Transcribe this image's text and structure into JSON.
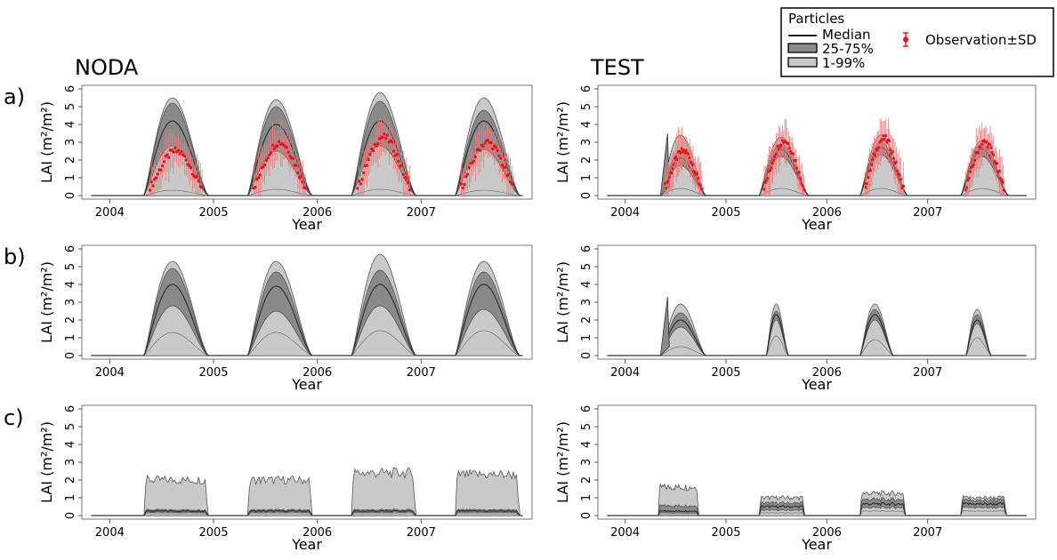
{
  "figure": {
    "columns": [
      "NODA",
      "TEST"
    ],
    "rows": [
      "a)",
      "b)",
      "c)"
    ]
  },
  "legend": {
    "title": "Particles",
    "items": [
      "Median",
      "25-75%",
      "1-99%"
    ],
    "observation_label": "Observation±SD"
  },
  "colors": {
    "band_outer": "#c9c9c9",
    "band_inner": "#8a8a8a",
    "median": "#333333",
    "observation": "#e8141a",
    "observation_err": "#f07878",
    "axis": "#777777"
  },
  "chart_data": [
    {
      "panel": "a-NODA",
      "type": "area",
      "xlabel": "Year",
      "ylabel": "LAI (m²/m²)",
      "xticks": [
        "2004",
        "2005",
        "2006",
        "2007"
      ],
      "xlim": [
        2003.8,
        2008.0
      ],
      "ylim": [
        0,
        6
      ],
      "yticks": [
        0,
        1,
        2,
        3,
        4,
        5,
        6
      ],
      "seasons": [
        {
          "start": 2004.33,
          "end": 2004.95,
          "q01": 0.3,
          "q25": 2.8,
          "median": 4.2,
          "q75": 5.2,
          "q99": 5.5
        },
        {
          "start": 2005.33,
          "end": 2005.95,
          "q01": 0.35,
          "q25": 2.5,
          "median": 4.0,
          "q75": 5.0,
          "q99": 5.4
        },
        {
          "start": 2006.33,
          "end": 2006.95,
          "q01": 0.35,
          "q25": 2.8,
          "median": 4.2,
          "q75": 5.3,
          "q99": 5.8
        },
        {
          "start": 2007.33,
          "end": 2007.95,
          "q01": 0.3,
          "q25": 2.6,
          "median": 4.2,
          "q75": 4.8,
          "q99": 5.5
        }
      ],
      "observations": [
        {
          "year": 2004,
          "peak": 2.0
        },
        {
          "year": 2005,
          "peak": 2.5
        },
        {
          "year": 2006,
          "peak": 2.8
        },
        {
          "year": 2007,
          "peak": 2.5
        }
      ],
      "ribbon_scale": 0.88
    },
    {
      "panel": "a-TEST",
      "type": "area",
      "xlabel": "Year",
      "ylabel": "LAI (m²/m²)",
      "xticks": [
        "2004",
        "2005",
        "2006",
        "2007"
      ],
      "xlim": [
        2003.8,
        2008.0
      ],
      "ylim": [
        0,
        6
      ],
      "yticks": [
        0,
        1,
        2,
        3,
        4,
        5,
        6
      ],
      "seasons": [
        {
          "start": 2004.35,
          "end": 2004.8,
          "q01": 0.4,
          "q25": 1.7,
          "median": 2.1,
          "q75": 2.5,
          "q99": 3.4,
          "spike": 3.5
        },
        {
          "start": 2005.33,
          "end": 2005.82,
          "q01": 0.4,
          "q25": 2.2,
          "median": 2.6,
          "q75": 2.9,
          "q99": 3.3
        },
        {
          "start": 2006.33,
          "end": 2006.8,
          "q01": 0.4,
          "q25": 2.3,
          "median": 2.7,
          "q75": 3.0,
          "q99": 3.4
        },
        {
          "start": 2007.33,
          "end": 2007.8,
          "q01": 0.4,
          "q25": 2.2,
          "median": 2.6,
          "q75": 2.9,
          "q99": 3.1
        }
      ],
      "observations": [
        {
          "year": 2004,
          "peak": 2.0
        },
        {
          "year": 2005,
          "peak": 2.6
        },
        {
          "year": 2006,
          "peak": 2.7
        },
        {
          "year": 2007,
          "peak": 2.5
        }
      ],
      "ribbon_scale": 0.88
    },
    {
      "panel": "b-NODA",
      "type": "area",
      "xlabel": "Year",
      "ylabel": "LAI (m²/m²)",
      "xticks": [
        "2004",
        "2005",
        "2006",
        "2007"
      ],
      "xlim": [
        2003.8,
        2008.0
      ],
      "ylim": [
        0,
        6
      ],
      "yticks": [
        0,
        1,
        2,
        3,
        4,
        5,
        6
      ],
      "seasons": [
        {
          "start": 2004.33,
          "end": 2004.95,
          "q01": 1.3,
          "q25": 2.8,
          "median": 4.0,
          "q75": 4.9,
          "q99": 5.3
        },
        {
          "start": 2005.33,
          "end": 2005.95,
          "q01": 1.3,
          "q25": 2.5,
          "median": 3.9,
          "q75": 4.7,
          "q99": 5.3
        },
        {
          "start": 2006.33,
          "end": 2006.95,
          "q01": 1.4,
          "q25": 2.8,
          "median": 4.0,
          "q75": 4.8,
          "q99": 5.7
        },
        {
          "start": 2007.33,
          "end": 2007.95,
          "q01": 1.4,
          "q25": 2.6,
          "median": 4.0,
          "q75": 4.7,
          "q99": 5.3
        }
      ],
      "observations": [],
      "ribbon_scale": 1.0
    },
    {
      "panel": "b-TEST",
      "type": "area",
      "xlabel": "Year",
      "ylabel": "LAI (m²/m²)",
      "xticks": [
        "2004",
        "2005",
        "2006",
        "2007"
      ],
      "xlim": [
        2003.8,
        2008.0
      ],
      "ylim": [
        0,
        6
      ],
      "yticks": [
        0,
        1,
        2,
        3,
        4,
        5,
        6
      ],
      "seasons": [
        {
          "start": 2004.35,
          "end": 2004.8,
          "q01": 0.5,
          "q25": 1.6,
          "median": 2.0,
          "q75": 2.4,
          "q99": 2.9,
          "spike": 3.3
        },
        {
          "start": 2005.4,
          "end": 2005.62,
          "q01": 1.1,
          "q25": 2.0,
          "median": 2.3,
          "q75": 2.5,
          "q99": 2.9
        },
        {
          "start": 2006.33,
          "end": 2006.66,
          "q01": 0.9,
          "q25": 2.0,
          "median": 2.3,
          "q75": 2.6,
          "q99": 2.9
        },
        {
          "start": 2007.38,
          "end": 2007.63,
          "q01": 1.0,
          "q25": 1.8,
          "median": 2.0,
          "q75": 2.3,
          "q99": 2.6
        }
      ],
      "observations": [],
      "ribbon_scale": 1.0
    },
    {
      "panel": "c-NODA",
      "type": "area",
      "xlabel": "Year",
      "ylabel": "LAI (m²/m²)",
      "xticks": [
        "2004",
        "2005",
        "2006",
        "2007"
      ],
      "xlim": [
        2003.8,
        2008.0
      ],
      "ylim": [
        0,
        6
      ],
      "yticks": [
        0,
        1,
        2,
        3,
        4,
        5,
        6
      ],
      "seasons": [
        {
          "start": 2004.33,
          "end": 2004.95,
          "q01": 0.1,
          "q25": 0.18,
          "median": 0.25,
          "q75": 0.32,
          "q99": 2.0
        },
        {
          "start": 2005.33,
          "end": 2005.95,
          "q01": 0.1,
          "q25": 0.18,
          "median": 0.25,
          "q75": 0.32,
          "q99": 2.0
        },
        {
          "start": 2006.33,
          "end": 2006.95,
          "q01": 0.1,
          "q25": 0.18,
          "median": 0.25,
          "q75": 0.32,
          "q99": 2.4
        },
        {
          "start": 2007.33,
          "end": 2007.95,
          "q01": 0.1,
          "q25": 0.18,
          "median": 0.25,
          "q75": 0.32,
          "q99": 2.3
        }
      ],
      "observations": [],
      "flat": true,
      "ribbon_scale": 1.0
    },
    {
      "panel": "c-TEST",
      "type": "area",
      "xlabel": "Year",
      "ylabel": "LAI (m²/m²)",
      "xticks": [
        "2004",
        "2005",
        "2006",
        "2007"
      ],
      "xlim": [
        2003.8,
        2008.0
      ],
      "ylim": [
        0,
        6
      ],
      "yticks": [
        0,
        1,
        2,
        3,
        4,
        5,
        6
      ],
      "seasons": [
        {
          "start": 2004.33,
          "end": 2004.73,
          "q01": 0.05,
          "q25": 0.15,
          "median": 0.25,
          "q75": 0.55,
          "q99": 1.6
        },
        {
          "start": 2005.33,
          "end": 2005.78,
          "q01": 0.15,
          "q25": 0.3,
          "median": 0.5,
          "q75": 0.7,
          "q99": 1.0
        },
        {
          "start": 2006.33,
          "end": 2006.78,
          "q01": 0.25,
          "q25": 0.45,
          "median": 0.65,
          "q75": 0.9,
          "q99": 1.25
        },
        {
          "start": 2007.33,
          "end": 2007.78,
          "q01": 0.25,
          "q25": 0.45,
          "median": 0.65,
          "q75": 0.85,
          "q99": 1.0
        }
      ],
      "observations": [],
      "flat": true,
      "ribbon_scale": 1.0
    }
  ]
}
